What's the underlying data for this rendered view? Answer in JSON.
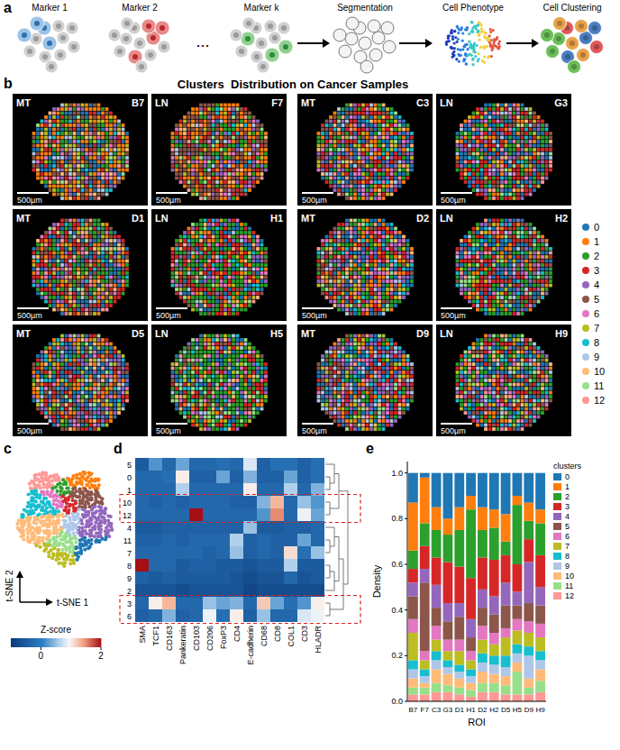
{
  "panel_labels": [
    "a",
    "b",
    "c",
    "d",
    "e"
  ],
  "workflow": {
    "steps": [
      "Marker 1",
      "Marker 2",
      "...",
      "Marker k",
      "Segmentation",
      "Cell Phenotype",
      "Cell Clustering"
    ]
  },
  "samples": {
    "title": "Clusters  Distribution on Cancer Samples",
    "scale_bar": "500µm",
    "tiles": [
      {
        "tissue": "MT",
        "id": "B7"
      },
      {
        "tissue": "LN",
        "id": "F7"
      },
      {
        "tissue": "MT",
        "id": "C3"
      },
      {
        "tissue": "LN",
        "id": "G3"
      },
      {
        "tissue": "MT",
        "id": "D1"
      },
      {
        "tissue": "LN",
        "id": "H1"
      },
      {
        "tissue": "MT",
        "id": "D2"
      },
      {
        "tissue": "LN",
        "id": "H2"
      },
      {
        "tissue": "MT",
        "id": "D5"
      },
      {
        "tissue": "LN",
        "id": "H5"
      },
      {
        "tissue": "MT",
        "id": "D9"
      },
      {
        "tissue": "LN",
        "id": "H9"
      }
    ],
    "legend": {
      "labels": [
        "0",
        "1",
        "2",
        "3",
        "4",
        "5",
        "6",
        "7",
        "8",
        "9",
        "10",
        "11",
        "12"
      ],
      "colors": [
        "#1f77b4",
        "#ff7f0e",
        "#2ca02c",
        "#d62728",
        "#9467bd",
        "#8c564b",
        "#e377c2",
        "#bcbd22",
        "#17becf",
        "#aec7e8",
        "#ffbb78",
        "#98df8a",
        "#ff9896"
      ]
    }
  },
  "tsne": {
    "xlabel": "t-SNE 1",
    "ylabel": "t-SNE 2"
  },
  "chart_data": [
    {
      "type": "heatmap",
      "x": [
        "SMA",
        "TCF1",
        "CD163",
        "Pankeratin",
        "CD103",
        "CD206",
        "FoxP3",
        "CD4",
        "E-cadherin",
        "CD68",
        "CD8",
        "COL1",
        "CD3",
        "HLADR"
      ],
      "y": [
        "5",
        "0",
        "1",
        "10",
        "12",
        "4",
        "11",
        "7",
        "8",
        "9",
        "2",
        "3",
        "6"
      ],
      "values": [
        [
          -0.5,
          0.2,
          -0.3,
          0.3,
          -0.3,
          -0.3,
          -0.2,
          -0.3,
          0.8,
          -0.4,
          -0.2,
          -0.2,
          -0.4,
          -0.2
        ],
        [
          -0.3,
          -0.3,
          -0.2,
          1.0,
          -0.4,
          -0.4,
          0.3,
          -0.4,
          0.4,
          -0.4,
          -0.4,
          0.3,
          -0.4,
          -0.2
        ],
        [
          -0.3,
          -0.3,
          -0.3,
          0.6,
          -0.3,
          -0.3,
          -0.3,
          -0.3,
          1.0,
          -0.3,
          -0.3,
          0.6,
          -0.3,
          0.4
        ],
        [
          -0.3,
          -0.4,
          -0.3,
          -0.4,
          -0.3,
          -0.3,
          -0.3,
          -0.4,
          -0.4,
          0.4,
          1.3,
          -0.3,
          0.5,
          0.2
        ],
        [
          -0.3,
          -0.3,
          -0.3,
          -0.3,
          2.0,
          -0.3,
          -0.3,
          -0.3,
          -0.3,
          0.2,
          1.5,
          -0.3,
          0.9,
          0.3
        ],
        [
          -0.5,
          -0.5,
          -0.4,
          -0.4,
          -0.4,
          -0.4,
          -0.4,
          -0.4,
          0.5,
          -0.5,
          -0.5,
          -0.4,
          -0.4,
          -0.3
        ],
        [
          -0.4,
          -0.4,
          -0.3,
          -0.4,
          -0.3,
          -0.3,
          -0.3,
          0.6,
          -0.4,
          -0.3,
          -0.4,
          -0.4,
          0.3,
          -0.3
        ],
        [
          -0.3,
          -0.3,
          -0.3,
          -0.3,
          -0.3,
          -0.4,
          -0.3,
          0.5,
          -0.4,
          -0.3,
          -0.4,
          1.1,
          -0.2,
          0.5
        ],
        [
          2.0,
          -0.3,
          -0.3,
          -0.5,
          -0.4,
          -0.4,
          -0.5,
          -0.5,
          -0.6,
          -0.5,
          -0.5,
          0.6,
          -0.5,
          -0.5
        ],
        [
          -0.4,
          -0.5,
          -0.4,
          -0.5,
          -0.5,
          -0.5,
          -0.5,
          -0.6,
          -0.7,
          -0.6,
          -0.6,
          -0.3,
          -0.6,
          -0.5
        ],
        [
          -0.6,
          -0.6,
          -0.6,
          -0.7,
          -0.6,
          -0.6,
          -0.6,
          -0.6,
          -0.8,
          -0.7,
          -0.7,
          -0.7,
          -0.7,
          -0.7
        ],
        [
          -0.3,
          1.0,
          1.3,
          -0.3,
          -0.3,
          0.5,
          0.3,
          0.4,
          -0.3,
          1.2,
          0.3,
          -0.2,
          0.2,
          1.0
        ],
        [
          -0.4,
          -0.3,
          0.4,
          -0.4,
          -0.3,
          0.9,
          -0.2,
          1.0,
          -0.4,
          0.5,
          -0.3,
          -0.3,
          0.8,
          0.9
        ]
      ],
      "colorbar": {
        "title": "Z-score",
        "range": [
          -1,
          2
        ],
        "ticks": [
          0,
          2
        ]
      }
    },
    {
      "type": "bar",
      "stacked": true,
      "legend": "right",
      "legend_title": "clusters",
      "xlabel": "ROI",
      "ylabel": "Density",
      "categories": [
        "B7",
        "F7",
        "C3",
        "G3",
        "D1",
        "H1",
        "D2",
        "H2",
        "D5",
        "H5",
        "D9",
        "H9"
      ],
      "ylim": [
        0,
        1.05
      ],
      "yticks": [
        {
          "value": 0,
          "label": "0.0"
        },
        {
          "value": 0.2,
          "label": "0.2"
        },
        {
          "value": 0.4,
          "label": "0.4"
        },
        {
          "value": 0.6,
          "label": "0.6"
        },
        {
          "value": 0.8,
          "label": "0.8"
        },
        {
          "value": 1,
          "label": "1.0"
        }
      ],
      "series": [
        {
          "name": "0",
          "color": "#1f77b4",
          "values": [
            0.13,
            0.02,
            0.15,
            0.2,
            0.15,
            0.1,
            0.15,
            0.16,
            0.18,
            0.1,
            0.13,
            0.16
          ]
        },
        {
          "name": "1",
          "color": "#ff7f0e",
          "values": [
            0.21,
            0.2,
            0.1,
            0.07,
            0.1,
            0.06,
            0.1,
            0.08,
            0.12,
            0.04,
            0.08,
            0.06
          ]
        },
        {
          "name": "2",
          "color": "#2ca02c",
          "values": [
            0.08,
            0.1,
            0.12,
            0.12,
            0.16,
            0.3,
            0.12,
            0.14,
            0.06,
            0.26,
            0.08,
            0.14
          ]
        },
        {
          "name": "3",
          "color": "#d62728",
          "values": [
            0.06,
            0.1,
            0.12,
            0.18,
            0.16,
            0.18,
            0.14,
            0.16,
            0.12,
            0.12,
            0.1,
            0.14
          ]
        },
        {
          "name": "4",
          "color": "#9467bd",
          "values": [
            0.06,
            0.06,
            0.1,
            0.08,
            0.06,
            0.08,
            0.08,
            0.08,
            0.1,
            0.06,
            0.18,
            0.08
          ]
        },
        {
          "name": "5",
          "color": "#8c564b",
          "values": [
            0.1,
            0.3,
            0.08,
            0.08,
            0.1,
            0.06,
            0.08,
            0.08,
            0.1,
            0.06,
            0.08,
            0.08
          ]
        },
        {
          "name": "6",
          "color": "#e377c2",
          "values": [
            0.06,
            0.04,
            0.06,
            0.05,
            0.05,
            0.04,
            0.06,
            0.05,
            0.04,
            0.05,
            0.05,
            0.06
          ]
        },
        {
          "name": "7",
          "color": "#bcbd22",
          "values": [
            0.12,
            0.04,
            0.05,
            0.04,
            0.06,
            0.04,
            0.06,
            0.05,
            0.08,
            0.06,
            0.06,
            0.06
          ]
        },
        {
          "name": "8",
          "color": "#17becf",
          "values": [
            0.04,
            0.03,
            0.04,
            0.03,
            0.03,
            0.03,
            0.04,
            0.04,
            0.05,
            0.04,
            0.04,
            0.04
          ]
        },
        {
          "name": "9",
          "color": "#aec7e8",
          "values": [
            0.04,
            0.03,
            0.04,
            0.03,
            0.03,
            0.03,
            0.04,
            0.04,
            0.04,
            0.04,
            0.1,
            0.04
          ]
        },
        {
          "name": "10",
          "color": "#ffbb78",
          "values": [
            0.04,
            0.02,
            0.06,
            0.05,
            0.04,
            0.03,
            0.05,
            0.04,
            0.04,
            0.04,
            0.04,
            0.05
          ]
        },
        {
          "name": "11",
          "color": "#98df8a",
          "values": [
            0.03,
            0.03,
            0.04,
            0.03,
            0.03,
            0.03,
            0.04,
            0.04,
            0.04,
            0.1,
            0.03,
            0.05
          ]
        },
        {
          "name": "12",
          "color": "#ff9896",
          "values": [
            0.03,
            0.03,
            0.04,
            0.04,
            0.03,
            0.02,
            0.04,
            0.04,
            0.03,
            0.03,
            0.03,
            0.04
          ]
        }
      ]
    }
  ]
}
